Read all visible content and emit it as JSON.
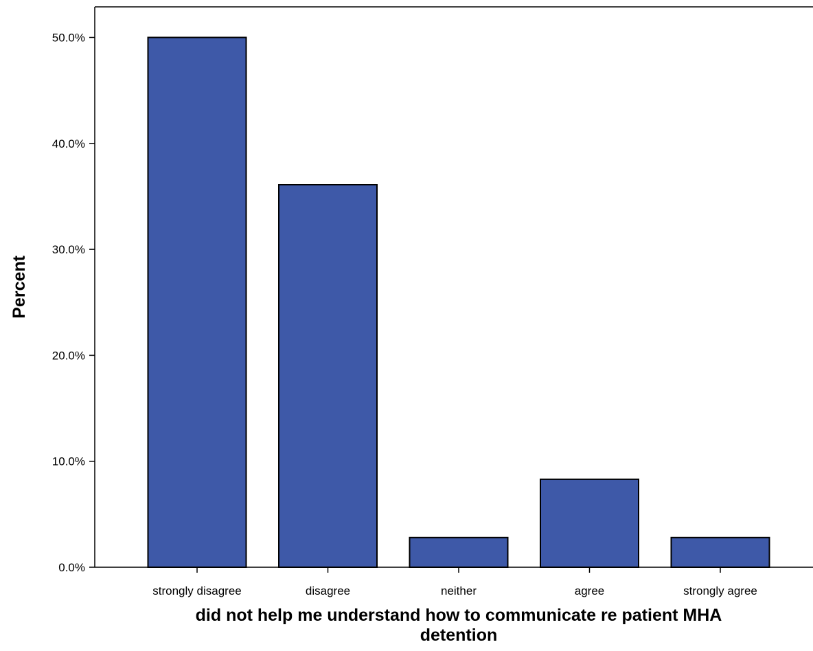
{
  "chart_data": {
    "type": "bar",
    "categories": [
      "strongly disagree",
      "disagree",
      "neither",
      "agree",
      "strongly agree"
    ],
    "values": [
      50.0,
      36.1,
      2.8,
      8.3,
      2.8
    ],
    "title": "",
    "xlabel_lines": [
      "did not help me understand how to communicate re patient MHA",
      "detention"
    ],
    "ylabel": "Percent",
    "ylim": [
      0,
      53
    ],
    "yticks": [
      0,
      10,
      20,
      30,
      40,
      50
    ],
    "ytick_labels": [
      "0.0%",
      "10.0%",
      "20.0%",
      "30.0%",
      "40.0%",
      "50.0%"
    ],
    "grid": false,
    "legend": "none",
    "bar_color": "#3e59a8",
    "bar_edge_color": "#000000"
  }
}
